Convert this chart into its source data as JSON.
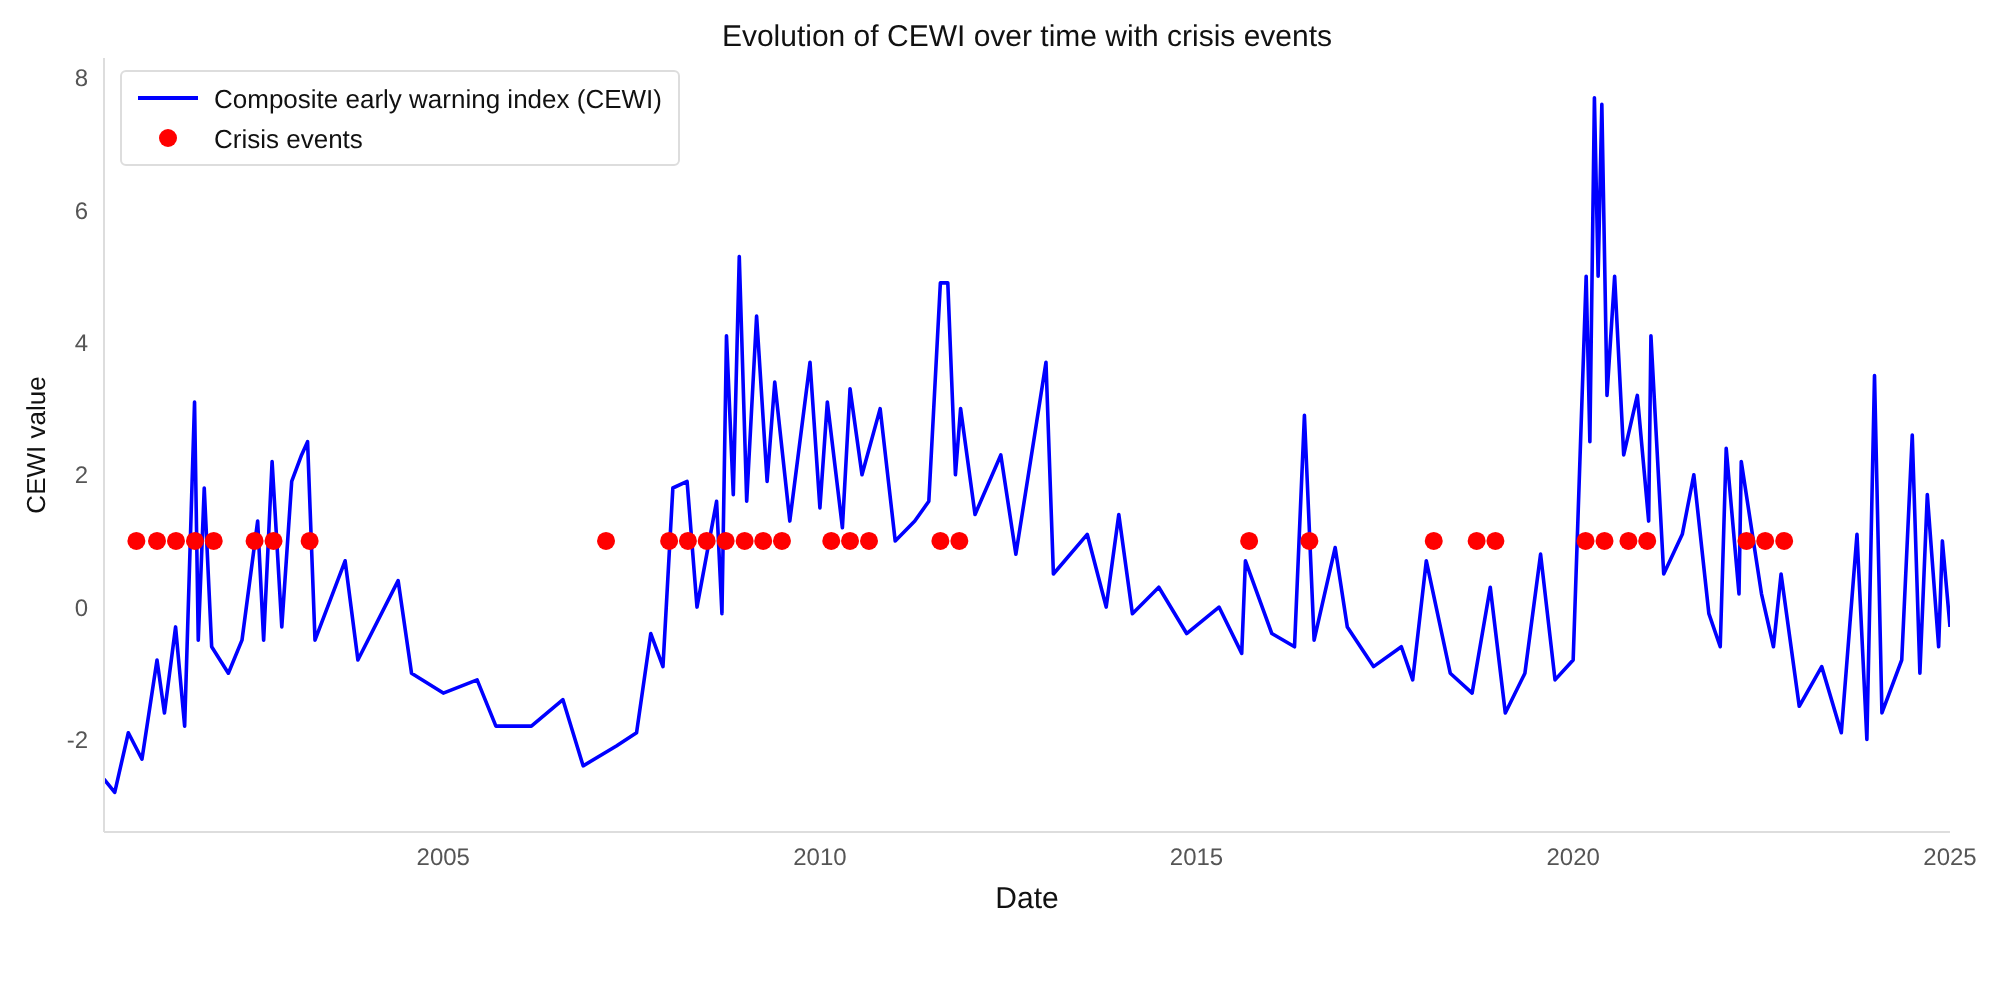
{
  "chart_data": {
    "type": "line",
    "title": "Evolution of CEWI over time with crisis events",
    "xlabel": "Date",
    "ylabel": "CEWI value",
    "xlim": [
      "2000-07-01",
      "2025-01-01"
    ],
    "xticks": [
      "2005",
      "2010",
      "2015",
      "2020",
      "2025"
    ],
    "ylim": [
      -3.4,
      8.3
    ],
    "yticks": [
      -2,
      0,
      2,
      4,
      6,
      8
    ],
    "grid": false,
    "legend": "top left",
    "series": [
      {
        "name": "Composite early warning index (CEWI)",
        "color": "#0000ff",
        "marker": "none",
        "line_style": "solid",
        "x": [
          "2000-07-01",
          "2000-08-22",
          "2000-10-27",
          "2001-01-01",
          "2001-03-15",
          "2001-04-20",
          "2001-06-13",
          "2001-07-27",
          "2001-09-13",
          "2001-10-01",
          "2001-10-30",
          "2001-12-05",
          "2002-02-24",
          "2002-05-01",
          "2002-07-16",
          "2002-08-14",
          "2002-09-24",
          "2002-11-10",
          "2002-12-28",
          "2003-02-14",
          "2003-03-15",
          "2003-04-20",
          "2003-09-13",
          "2003-11-14",
          "2004-05-27",
          "2004-07-31",
          "2005-01-01",
          "2005-06-14",
          "2005-09-13",
          "2006-03-04",
          "2006-08-04",
          "2006-11-10",
          "2007-04-20",
          "2007-07-27",
          "2007-10-04",
          "2007-12-02",
          "2008-01-19",
          "2008-03-28",
          "2008-05-15",
          "2008-08-18",
          "2008-09-13",
          "2008-10-05",
          "2008-11-07",
          "2008-12-06",
          "2009-01-11",
          "2009-02-28",
          "2009-04-20",
          "2009-05-27",
          "2009-08-08",
          "2009-11-14",
          "2010-01-01",
          "2010-02-06",
          "2010-04-20",
          "2010-05-27",
          "2010-07-24",
          "2010-10-20",
          "2011-01-01",
          "2011-04-06",
          "2011-06-13",
          "2011-08-08",
          "2011-09-13",
          "2011-10-20",
          "2011-11-14",
          "2012-01-23",
          "2012-05-27",
          "2012-08-08",
          "2012-11-07",
          "2013-01-01",
          "2013-02-06",
          "2013-07-20",
          "2013-10-20",
          "2013-12-20",
          "2014-02-24",
          "2014-07-02",
          "2014-11-14",
          "2015-04-20",
          "2015-08-08",
          "2015-08-26",
          "2016-01-01",
          "2016-04-20",
          "2016-06-07",
          "2016-07-24",
          "2016-11-03",
          "2017-01-01",
          "2017-05-08",
          "2017-09-20",
          "2017-11-14",
          "2018-01-19",
          "2018-05-15",
          "2018-08-29",
          "2018-11-25",
          "2019-02-06",
          "2019-05-12",
          "2019-07-27",
          "2019-10-05",
          "2020-01-01",
          "2020-03-04",
          "2020-03-22",
          "2020-04-13",
          "2020-05-01",
          "2020-05-19",
          "2020-06-13",
          "2020-07-20",
          "2020-09-02",
          "2020-11-07",
          "2021-01-01",
          "2021-01-12",
          "2021-03-15",
          "2021-06-13",
          "2021-08-08",
          "2021-10-20",
          "2021-12-14",
          "2022-01-12",
          "2022-03-15",
          "2022-03-26",
          "2022-07-02",
          "2022-08-29",
          "2022-10-05",
          "2023-01-01",
          "2023-04-20",
          "2023-07-24",
          "2023-10-08",
          "2023-11-25",
          "2024-01-01",
          "2024-02-06",
          "2024-05-12",
          "2024-07-02",
          "2024-08-08",
          "2024-09-13",
          "2024-11-07",
          "2024-11-25",
          "2025-01-01"
        ],
        "values": [
          -2.6,
          -2.8,
          -1.9,
          -2.3,
          -0.8,
          -1.6,
          -0.3,
          -1.8,
          3.1,
          -0.5,
          1.8,
          -0.6,
          -1.0,
          -0.5,
          1.3,
          -0.5,
          2.2,
          -0.3,
          1.9,
          2.3,
          2.5,
          -0.5,
          0.7,
          -0.8,
          0.4,
          -1.0,
          -1.3,
          -1.1,
          -1.8,
          -1.8,
          -1.4,
          -2.4,
          -2.1,
          -1.9,
          -0.4,
          -0.9,
          1.8,
          1.9,
          0.0,
          1.6,
          -0.1,
          4.1,
          1.7,
          5.3,
          1.6,
          4.4,
          1.9,
          3.4,
          1.3,
          3.7,
          1.5,
          3.1,
          1.2,
          3.3,
          2.0,
          3.0,
          1.0,
          1.3,
          1.6,
          4.9,
          4.9,
          2.0,
          3.0,
          1.4,
          2.3,
          0.8,
          2.6,
          3.7,
          0.5,
          1.1,
          0.0,
          1.4,
          -0.1,
          0.3,
          -0.4,
          0.0,
          -0.7,
          0.7,
          -0.4,
          -0.6,
          2.9,
          -0.5,
          0.9,
          -0.3,
          -0.9,
          -0.6,
          -1.1,
          0.7,
          -1.0,
          -1.3,
          0.3,
          -1.6,
          -1.0,
          0.8,
          -1.1,
          -0.8,
          5.0,
          2.5,
          7.7,
          5.0,
          7.6,
          3.2,
          5.0,
          2.3,
          3.2,
          1.3,
          4.1,
          0.5,
          1.1,
          2.0,
          -0.1,
          -0.6,
          2.4,
          0.2,
          2.2,
          0.2,
          -0.6,
          0.5,
          -1.5,
          -0.9,
          -1.9,
          1.1,
          -2.0,
          3.5,
          -1.6,
          -0.8,
          2.6,
          -1.0,
          1.7,
          -0.6,
          1.0,
          -0.3
        ]
      },
      {
        "type": "scatter",
        "name": "Crisis events",
        "color": "#ff0000",
        "marker": "circle",
        "x": [
          "2000-12-05",
          "2001-03-15",
          "2001-06-15",
          "2001-09-15",
          "2001-12-15",
          "2002-07-01",
          "2002-10-01",
          "2003-03-25",
          "2007-03-01",
          "2008-01-01",
          "2008-04-01",
          "2008-07-01",
          "2008-10-01",
          "2009-01-01",
          "2009-04-01",
          "2009-07-01",
          "2010-02-25",
          "2010-05-27",
          "2010-08-27",
          "2011-08-08",
          "2011-11-08",
          "2015-09-13",
          "2016-07-01",
          "2018-02-24",
          "2018-09-20",
          "2018-12-20",
          "2020-03-01",
          "2020-06-01",
          "2020-09-25",
          "2020-12-25",
          "2022-04-20",
          "2022-07-20",
          "2022-10-20"
        ],
        "values": [
          1,
          1,
          1,
          1,
          1,
          1,
          1,
          1,
          1,
          1,
          1,
          1,
          1,
          1,
          1,
          1,
          1,
          1,
          1,
          1,
          1,
          1,
          1,
          1,
          1,
          1,
          1,
          1,
          1,
          1,
          1,
          1,
          1
        ]
      }
    ]
  }
}
